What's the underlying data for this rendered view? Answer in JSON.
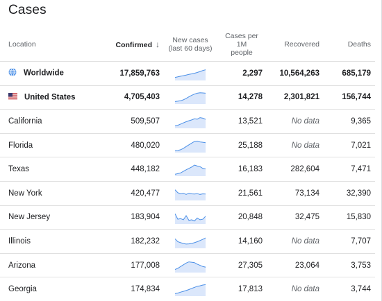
{
  "title": "Cases",
  "columns": {
    "location": "Location",
    "confirmed": "Confirmed",
    "new_cases_line1": "New cases",
    "new_cases_line2": "(last 60 days)",
    "per_1m_line1": "Cases per",
    "per_1m_line2": "1M",
    "per_1m_line3": "people",
    "recovered": "Recovered",
    "deaths": "Deaths"
  },
  "rows": [
    {
      "location": "Worldwide",
      "confirmed": "17,859,763",
      "per_1m": "2,297",
      "recovered": "10,564,263",
      "deaths": "685,179",
      "icon": "globe-icon",
      "trend": [
        0.2,
        0.25,
        0.3,
        0.35,
        0.4,
        0.45,
        0.5,
        0.55,
        0.62,
        0.7,
        0.78,
        0.85
      ]
    },
    {
      "location": "United States",
      "confirmed": "4,705,403",
      "per_1m": "14,278",
      "recovered": "2,301,821",
      "deaths": "156,744",
      "icon": "us-flag-icon",
      "trend": [
        0.15,
        0.18,
        0.22,
        0.3,
        0.42,
        0.55,
        0.68,
        0.78,
        0.86,
        0.9,
        0.88,
        0.86
      ]
    },
    {
      "location": "California",
      "confirmed": "509,507",
      "per_1m": "13,521",
      "recovered": "No data",
      "deaths": "9,365",
      "trend": [
        0.15,
        0.2,
        0.3,
        0.4,
        0.5,
        0.58,
        0.65,
        0.75,
        0.72,
        0.85,
        0.8,
        0.7
      ]
    },
    {
      "location": "Florida",
      "confirmed": "480,020",
      "per_1m": "25,188",
      "recovered": "No data",
      "deaths": "7,021",
      "trend": [
        0.1,
        0.12,
        0.18,
        0.3,
        0.45,
        0.6,
        0.75,
        0.88,
        0.92,
        0.85,
        0.82,
        0.78
      ]
    },
    {
      "location": "Texas",
      "confirmed": "448,182",
      "per_1m": "16,183",
      "recovered": "282,604",
      "deaths": "7,471",
      "trend": [
        0.1,
        0.15,
        0.22,
        0.35,
        0.48,
        0.6,
        0.72,
        0.88,
        0.8,
        0.75,
        0.6,
        0.55
      ]
    },
    {
      "location": "New York",
      "confirmed": "420,477",
      "per_1m": "21,561",
      "recovered": "73,134",
      "deaths": "32,390",
      "trend": [
        0.85,
        0.6,
        0.5,
        0.55,
        0.45,
        0.55,
        0.5,
        0.48,
        0.52,
        0.45,
        0.5,
        0.48
      ]
    },
    {
      "location": "New Jersey",
      "confirmed": "183,904",
      "per_1m": "20,848",
      "recovered": "32,475",
      "deaths": "15,830",
      "trend": [
        0.82,
        0.35,
        0.4,
        0.3,
        0.65,
        0.25,
        0.3,
        0.2,
        0.45,
        0.3,
        0.35,
        0.6
      ]
    },
    {
      "location": "Illinois",
      "confirmed": "182,232",
      "per_1m": "14,160",
      "recovered": "No data",
      "deaths": "7,707",
      "trend": [
        0.75,
        0.5,
        0.42,
        0.35,
        0.3,
        0.32,
        0.35,
        0.42,
        0.5,
        0.6,
        0.7,
        0.82
      ]
    },
    {
      "location": "Arizona",
      "confirmed": "177,008",
      "per_1m": "27,305",
      "recovered": "23,064",
      "deaths": "3,753",
      "trend": [
        0.2,
        0.3,
        0.45,
        0.6,
        0.75,
        0.85,
        0.82,
        0.78,
        0.65,
        0.55,
        0.45,
        0.4
      ]
    },
    {
      "location": "Georgia",
      "confirmed": "174,834",
      "per_1m": "17,813",
      "recovered": "No data",
      "deaths": "3,744",
      "trend": [
        0.15,
        0.2,
        0.28,
        0.35,
        0.42,
        0.5,
        0.6,
        0.68,
        0.78,
        0.82,
        0.88,
        0.92
      ]
    }
  ],
  "colors": {
    "spark_line": "#4a8fe7",
    "spark_fill": "#dbe7fb"
  }
}
